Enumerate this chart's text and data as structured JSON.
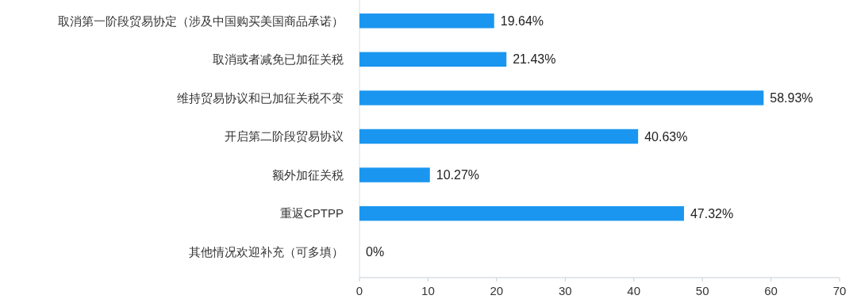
{
  "chart_data": {
    "type": "bar",
    "orientation": "horizontal",
    "categories": [
      "取消第一阶段贸易协定（涉及中国购买美国商品承诺）",
      "取消或者减免已加征关税",
      "维持贸易协议和已加征关税不变",
      "开启第二阶段贸易协议",
      "额外加征关税",
      "重返CPTPP",
      "其他情况欢迎补充（可多填）"
    ],
    "values": [
      19.64,
      21.43,
      58.93,
      40.63,
      10.27,
      47.32,
      0
    ],
    "value_labels": [
      "19.64%",
      "21.43%",
      "58.93%",
      "40.63%",
      "10.27%",
      "47.32%",
      "0%"
    ],
    "color": "#1b96f0",
    "xlim": [
      0,
      70
    ],
    "xticks": [
      0,
      10,
      20,
      30,
      40,
      50,
      60,
      70
    ],
    "grid": false
  }
}
